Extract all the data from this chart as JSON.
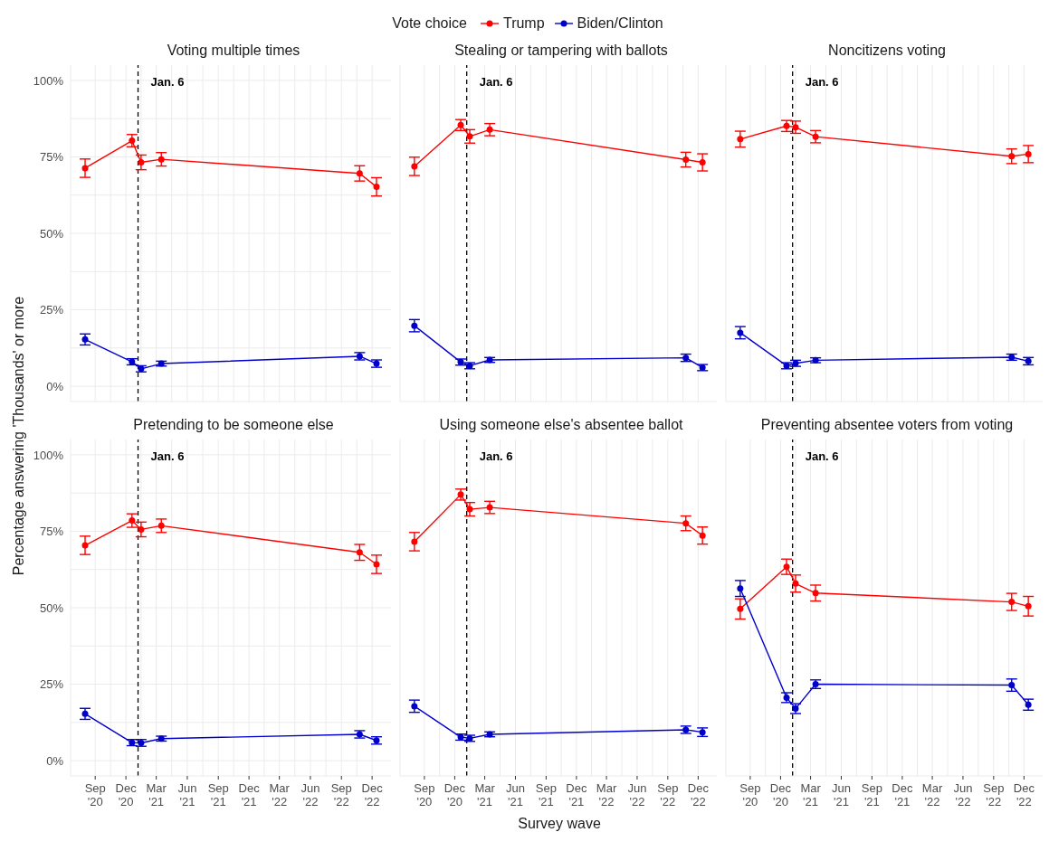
{
  "chart_data": [
    {
      "type": "line",
      "title": "Voting multiple times",
      "ylabel": "Percentage answering 'Thousands' or more",
      "legend_title": "Vote choice",
      "legend": "top",
      "tick_labels": "y",
      "grid": true,
      "marker": "circle",
      "line_style": "solid",
      "x": [
        "2020-08-02",
        "2020-12-19",
        "2021-01-15",
        "2021-03-16",
        "2022-10-25",
        "2022-12-14"
      ],
      "xlim": [
        "2020-06-20",
        "2023-01-26"
      ],
      "xticks": [
        {
          "value": "2020-09-01",
          "label": null
        },
        {
          "value": "2020-12-01",
          "label": null
        },
        {
          "value": "2021-03-01",
          "label": null
        },
        {
          "value": "2021-06-01",
          "label": null
        },
        {
          "value": "2021-09-01",
          "label": null
        },
        {
          "value": "2021-12-01",
          "label": null
        },
        {
          "value": "2022-03-01",
          "label": null
        },
        {
          "value": "2022-06-01",
          "label": null
        },
        {
          "value": "2022-09-01",
          "label": null
        },
        {
          "value": "2022-12-01",
          "label": null
        }
      ],
      "ylim": [
        -5,
        105
      ],
      "yticks": [
        {
          "value": 0,
          "label": "0%"
        },
        {
          "value": 25,
          "label": "25%"
        },
        {
          "value": 50,
          "label": "50%"
        },
        {
          "value": 75,
          "label": "75%"
        },
        {
          "value": 100,
          "label": "100%"
        }
      ],
      "ref_lines": [
        {
          "axis": "x",
          "value": "2021-01-06",
          "label": "Jan. 6",
          "color": "#000000",
          "line_style": "dashed"
        }
      ],
      "series": [
        {
          "name": "Trump",
          "color": "#ff0000",
          "values": [
            71.3,
            80.3,
            73.2,
            74.2,
            69.6,
            65.2
          ],
          "errors": [
            3,
            2,
            2.4,
            2.2,
            2.5,
            3
          ]
        },
        {
          "name": "Biden/Clinton",
          "color": "#0000cc",
          "values": [
            15.3,
            8.0,
            5.7,
            7.4,
            9.8,
            7.4
          ],
          "errors": [
            1.8,
            1,
            1,
            0.8,
            1.2,
            1.2
          ]
        }
      ]
    },
    {
      "type": "line",
      "title": "Stealing or tampering with ballots",
      "tick_labels": false,
      "grid": true,
      "marker": "circle",
      "line_style": "solid",
      "x": [
        "2020-08-02",
        "2020-12-19",
        "2021-01-15",
        "2021-03-16",
        "2022-10-25",
        "2022-12-14"
      ],
      "xlim": [
        "2020-06-20",
        "2023-01-26"
      ],
      "xticks": [
        {
          "value": "2020-09-01",
          "label": null
        },
        {
          "value": "2020-12-01",
          "label": null
        },
        {
          "value": "2021-03-01",
          "label": null
        },
        {
          "value": "2021-06-01",
          "label": null
        },
        {
          "value": "2021-09-01",
          "label": null
        },
        {
          "value": "2021-12-01",
          "label": null
        },
        {
          "value": "2022-03-01",
          "label": null
        },
        {
          "value": "2022-06-01",
          "label": null
        },
        {
          "value": "2022-09-01",
          "label": null
        },
        {
          "value": "2022-12-01",
          "label": null
        }
      ],
      "ylim": [
        -5,
        105
      ],
      "yticks": [
        {
          "value": 0,
          "label": null
        },
        {
          "value": 25,
          "label": null
        },
        {
          "value": 50,
          "label": null
        },
        {
          "value": 75,
          "label": null
        },
        {
          "value": 100,
          "label": null
        }
      ],
      "ref_lines": [
        {
          "axis": "x",
          "value": "2021-01-06",
          "label": "Jan. 6",
          "color": "#000000",
          "line_style": "dashed"
        }
      ],
      "series": [
        {
          "color": "#ff0000",
          "values": [
            71.9,
            85.4,
            81.7,
            83.9,
            74.1,
            73.2
          ],
          "errors": [
            3,
            1.8,
            2.2,
            2,
            2.4,
            2.8
          ]
        },
        {
          "color": "#0000cc",
          "values": [
            19.8,
            7.9,
            6.7,
            8.6,
            9.3,
            6.1
          ],
          "errors": [
            2,
            1,
            1,
            0.8,
            1.2,
            1
          ]
        }
      ]
    },
    {
      "type": "line",
      "title": "Noncitizens voting",
      "tick_labels": false,
      "grid": true,
      "marker": "circle",
      "line_style": "solid",
      "x": [
        "2020-08-02",
        "2020-12-19",
        "2021-01-15",
        "2021-03-16",
        "2022-10-25",
        "2022-12-14"
      ],
      "xlim": [
        "2020-06-20",
        "2023-01-26"
      ],
      "xticks": [
        {
          "value": "2020-09-01",
          "label": null
        },
        {
          "value": "2020-12-01",
          "label": null
        },
        {
          "value": "2021-03-01",
          "label": null
        },
        {
          "value": "2021-06-01",
          "label": null
        },
        {
          "value": "2021-09-01",
          "label": null
        },
        {
          "value": "2021-12-01",
          "label": null
        },
        {
          "value": "2022-03-01",
          "label": null
        },
        {
          "value": "2022-06-01",
          "label": null
        },
        {
          "value": "2022-09-01",
          "label": null
        },
        {
          "value": "2022-12-01",
          "label": null
        }
      ],
      "ylim": [
        -5,
        105
      ],
      "yticks": [
        {
          "value": 0,
          "label": null
        },
        {
          "value": 25,
          "label": null
        },
        {
          "value": 50,
          "label": null
        },
        {
          "value": 75,
          "label": null
        },
        {
          "value": 100,
          "label": null
        }
      ],
      "ref_lines": [
        {
          "axis": "x",
          "value": "2021-01-06",
          "label": "Jan. 6",
          "color": "#000000",
          "line_style": "dashed"
        }
      ],
      "series": [
        {
          "color": "#ff0000",
          "values": [
            80.8,
            85.1,
            84.7,
            81.6,
            75.2,
            75.9
          ],
          "errors": [
            2.6,
            1.8,
            2,
            2,
            2.4,
            2.8
          ]
        },
        {
          "color": "#0000cc",
          "values": [
            17.5,
            6.7,
            7.5,
            8.5,
            9.5,
            8.2
          ],
          "errors": [
            2,
            1,
            1,
            0.8,
            1,
            1.2
          ]
        }
      ]
    },
    {
      "type": "line",
      "title": "Pretending to be someone else",
      "grid": true,
      "marker": "circle",
      "line_style": "solid",
      "x": [
        "2020-08-02",
        "2020-12-19",
        "2021-01-15",
        "2021-03-16",
        "2022-10-25",
        "2022-12-14"
      ],
      "xlim": [
        "2020-06-20",
        "2023-01-26"
      ],
      "xticks": [
        {
          "value": "2020-09-01",
          "label": "Sep\n'20"
        },
        {
          "value": "2020-12-01",
          "label": "Dec\n'20"
        },
        {
          "value": "2021-03-01",
          "label": "Mar\n'21"
        },
        {
          "value": "2021-06-01",
          "label": "Jun\n'21"
        },
        {
          "value": "2021-09-01",
          "label": "Sep\n'21"
        },
        {
          "value": "2021-12-01",
          "label": "Dec\n'21"
        },
        {
          "value": "2022-03-01",
          "label": "Mar\n'22"
        },
        {
          "value": "2022-06-01",
          "label": "Jun\n'22"
        },
        {
          "value": "2022-09-01",
          "label": "Sep\n'22"
        },
        {
          "value": "2022-12-01",
          "label": "Dec\n'22"
        }
      ],
      "ylim": [
        -5,
        105
      ],
      "yticks": [
        {
          "value": 0,
          "label": "0%"
        },
        {
          "value": 25,
          "label": "25%"
        },
        {
          "value": 50,
          "label": "50%"
        },
        {
          "value": 75,
          "label": "75%"
        },
        {
          "value": 100,
          "label": "100%"
        }
      ],
      "ref_lines": [
        {
          "axis": "x",
          "value": "2021-01-06",
          "label": "Jan. 6",
          "color": "#000000",
          "line_style": "dashed"
        }
      ],
      "series": [
        {
          "color": "#ff0000",
          "values": [
            70.4,
            78.5,
            75.6,
            76.8,
            68.1,
            64.2
          ],
          "errors": [
            3,
            2.2,
            2.4,
            2.2,
            2.6,
            3
          ]
        },
        {
          "color": "#0000cc",
          "values": [
            15.3,
            5.9,
            5.8,
            7.2,
            8.6,
            6.6
          ],
          "errors": [
            1.8,
            1,
            1.1,
            0.8,
            1.2,
            1.2
          ]
        }
      ]
    },
    {
      "type": "line",
      "title": "Using someone else's absentee ballot",
      "xlabel": "Survey wave",
      "tick_labels": "x",
      "grid": true,
      "marker": "circle",
      "line_style": "solid",
      "x": [
        "2020-08-02",
        "2020-12-19",
        "2021-01-15",
        "2021-03-16",
        "2022-10-25",
        "2022-12-14"
      ],
      "xlim": [
        "2020-06-20",
        "2023-01-26"
      ],
      "xticks": [
        {
          "value": "2020-09-01",
          "label": "Sep\n'20"
        },
        {
          "value": "2020-12-01",
          "label": "Dec\n'20"
        },
        {
          "value": "2021-03-01",
          "label": "Mar\n'21"
        },
        {
          "value": "2021-06-01",
          "label": "Jun\n'21"
        },
        {
          "value": "2021-09-01",
          "label": "Sep\n'21"
        },
        {
          "value": "2021-12-01",
          "label": "Dec\n'21"
        },
        {
          "value": "2022-03-01",
          "label": "Mar\n'22"
        },
        {
          "value": "2022-06-01",
          "label": "Jun\n'22"
        },
        {
          "value": "2022-09-01",
          "label": "Sep\n'22"
        },
        {
          "value": "2022-12-01",
          "label": "Dec\n'22"
        }
      ],
      "ylim": [
        -5,
        105
      ],
      "yticks": [
        {
          "value": 0,
          "label": null
        },
        {
          "value": 25,
          "label": null
        },
        {
          "value": 50,
          "label": null
        },
        {
          "value": 75,
          "label": null
        },
        {
          "value": 100,
          "label": null
        }
      ],
      "ref_lines": [
        {
          "axis": "x",
          "value": "2021-01-06",
          "label": "Jan. 6",
          "color": "#000000",
          "line_style": "dashed"
        }
      ],
      "series": [
        {
          "color": "#ff0000",
          "values": [
            71.6,
            87.0,
            82.2,
            82.8,
            77.6,
            73.6
          ],
          "errors": [
            3,
            1.8,
            2.2,
            2,
            2.4,
            2.8
          ]
        },
        {
          "color": "#0000cc",
          "values": [
            17.8,
            7.7,
            7.3,
            8.6,
            10.1,
            9.3
          ],
          "errors": [
            2,
            1,
            1,
            0.8,
            1.2,
            1.4
          ]
        }
      ]
    },
    {
      "type": "line",
      "title": "Preventing absentee voters from voting",
      "tick_labels": "x",
      "grid": true,
      "marker": "circle",
      "line_style": "solid",
      "x": [
        "2020-08-02",
        "2020-12-19",
        "2021-01-15",
        "2021-03-16",
        "2022-10-25",
        "2022-12-14"
      ],
      "xlim": [
        "2020-06-20",
        "2023-01-26"
      ],
      "xticks": [
        {
          "value": "2020-09-01",
          "label": "Sep\n'20"
        },
        {
          "value": "2020-12-01",
          "label": "Dec\n'20"
        },
        {
          "value": "2021-03-01",
          "label": "Mar\n'21"
        },
        {
          "value": "2021-06-01",
          "label": "Jun\n'21"
        },
        {
          "value": "2021-09-01",
          "label": "Sep\n'21"
        },
        {
          "value": "2021-12-01",
          "label": "Dec\n'21"
        },
        {
          "value": "2022-03-01",
          "label": "Mar\n'22"
        },
        {
          "value": "2022-06-01",
          "label": "Jun\n'22"
        },
        {
          "value": "2022-09-01",
          "label": "Sep\n'22"
        },
        {
          "value": "2022-12-01",
          "label": "Dec\n'22"
        }
      ],
      "ylim": [
        -5,
        105
      ],
      "yticks": [
        {
          "value": 0,
          "label": null
        },
        {
          "value": 25,
          "label": null
        },
        {
          "value": 50,
          "label": null
        },
        {
          "value": 75,
          "label": null
        },
        {
          "value": 100,
          "label": null
        }
      ],
      "ref_lines": [
        {
          "axis": "x",
          "value": "2021-01-06",
          "label": "Jan. 6",
          "color": "#000000",
          "line_style": "dashed"
        }
      ],
      "series": [
        {
          "color": "#ff0000",
          "values": [
            49.6,
            63.4,
            57.9,
            54.8,
            51.9,
            50.5
          ],
          "errors": [
            3.3,
            2.5,
            2.8,
            2.6,
            2.8,
            3.2
          ]
        },
        {
          "color": "#0000cc",
          "values": [
            56.3,
            20.6,
            17.0,
            25.0,
            24.7,
            18.3
          ],
          "errors": [
            2.6,
            1.6,
            1.6,
            1.4,
            2,
            1.8
          ]
        }
      ]
    }
  ]
}
